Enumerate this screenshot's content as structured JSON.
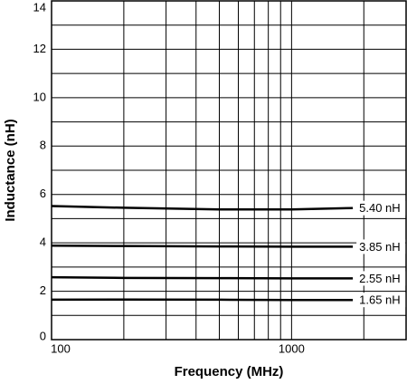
{
  "chart_data": {
    "type": "line",
    "xlabel": "Frequency (MHz)",
    "ylabel": "Inductance (nH)",
    "x": [
      100,
      200,
      500,
      1000,
      1800
    ],
    "series": [
      {
        "name": "5.40 nH",
        "color": "#000000",
        "values": [
          5.52,
          5.45,
          5.38,
          5.38,
          5.44
        ]
      },
      {
        "name": "3.85 nH",
        "color": "#000000",
        "values": [
          3.88,
          3.87,
          3.85,
          3.84,
          3.84
        ]
      },
      {
        "name": "2.55 nH",
        "color": "#000000",
        "values": [
          2.58,
          2.55,
          2.54,
          2.53,
          2.53
        ]
      },
      {
        "name": "1.65 nH",
        "color": "#000000",
        "values": [
          1.65,
          1.66,
          1.65,
          1.64,
          1.64
        ]
      }
    ],
    "xscale": "log",
    "xlim": [
      100,
      3000
    ],
    "xticks": [
      100,
      1000
    ],
    "x_minor_grid": [
      200,
      300,
      400,
      500,
      600,
      700,
      800,
      900,
      2000
    ],
    "ylim": [
      0,
      14
    ],
    "yticks": [
      0,
      2,
      4,
      6,
      8,
      10,
      12,
      14
    ],
    "y_minor_grid": [
      1,
      3,
      5,
      7,
      9,
      11,
      13
    ],
    "grid": true
  }
}
